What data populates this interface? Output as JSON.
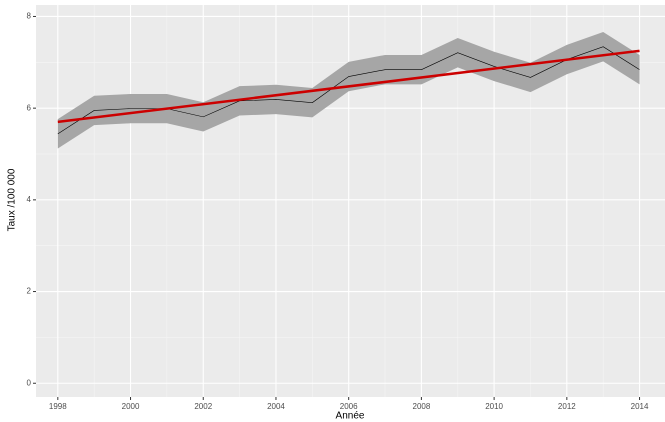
{
  "chart_data": {
    "type": "line-ribbon",
    "x_label": "Année",
    "y_label": "Taux /100 000",
    "x": [
      1998,
      1999,
      2000,
      2001,
      2002,
      2003,
      2004,
      2005,
      2006,
      2007,
      2008,
      2009,
      2010,
      2011,
      2012,
      2013,
      2014
    ],
    "values": [
      5.44,
      5.95,
      5.99,
      5.99,
      5.81,
      6.16,
      6.19,
      6.12,
      6.69,
      6.84,
      6.84,
      7.21,
      6.91,
      6.67,
      7.06,
      7.34,
      6.84
    ],
    "ribbon_lower": [
      5.12,
      5.63,
      5.67,
      5.67,
      5.49,
      5.84,
      5.87,
      5.8,
      6.37,
      6.52,
      6.52,
      6.89,
      6.59,
      6.35,
      6.74,
      7.02,
      6.52
    ],
    "ribbon_upper": [
      5.76,
      6.27,
      6.31,
      6.31,
      6.13,
      6.48,
      6.51,
      6.44,
      7.01,
      7.16,
      7.16,
      7.53,
      7.23,
      6.99,
      7.38,
      7.66,
      7.16
    ],
    "color": "#000000",
    "ribbon_color": "#a6a6a6",
    "trend": {
      "x": [
        1998,
        2014
      ],
      "values": [
        5.7,
        7.25
      ],
      "color": "#cc0000"
    },
    "xlim": [
      1997.4,
      2014.7
    ],
    "ylim": [
      -0.3,
      8.25
    ],
    "xticks": [
      1998,
      2000,
      2002,
      2004,
      2006,
      2008,
      2010,
      2012,
      2014
    ],
    "yticks": [
      0,
      2,
      4,
      6,
      8
    ],
    "grid": true
  }
}
